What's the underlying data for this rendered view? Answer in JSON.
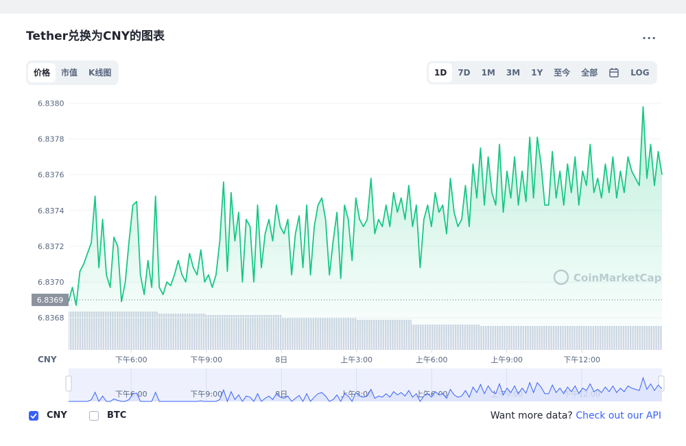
{
  "header": {
    "title": "Tether兑换为CNY的图表",
    "menu": "..."
  },
  "view_tabs": [
    {
      "label": "价格",
      "active": true
    },
    {
      "label": "市值",
      "active": false
    },
    {
      "label": "K线图",
      "active": false
    }
  ],
  "range_tabs": [
    {
      "label": "1D",
      "active": true
    },
    {
      "label": "7D",
      "active": false
    },
    {
      "label": "1M",
      "active": false
    },
    {
      "label": "3M",
      "active": false
    },
    {
      "label": "1Y",
      "active": false
    },
    {
      "label": "至今",
      "active": false
    },
    {
      "label": "全部",
      "active": false
    }
  ],
  "log_toggle": "LOG",
  "chart_data": {
    "type": "line",
    "ylim": [
      6.83662,
      6.83804
    ],
    "yticks": [
      {
        "value": 6.838,
        "label": "6.8380"
      },
      6.8378,
      6.8376,
      6.8374,
      6.8372,
      {
        "value": 6.837,
        "label": "6.8370"
      },
      6.8368
    ],
    "xlim": [
      15.5,
      39.2
    ],
    "xticks": [
      {
        "value": 18,
        "label": "下午6:00"
      },
      {
        "value": 21,
        "label": "下午9:00"
      },
      {
        "value": 24,
        "label": "8日"
      },
      {
        "value": 27,
        "label": "上午3:00"
      },
      {
        "value": 30,
        "label": "上午6:00"
      },
      {
        "value": 33,
        "label": "上午9:00"
      },
      {
        "value": 36,
        "label": "下午12:00"
      }
    ],
    "grid": true,
    "current_price": 6.8369,
    "watermark": "CoinMarketCap",
    "series": [
      {
        "name": "CNY",
        "color": "#16c784",
        "values": [
          6.83689,
          6.83697,
          6.83687,
          6.83706,
          6.8371,
          6.83716,
          6.83722,
          6.83748,
          6.83708,
          6.83735,
          6.83704,
          6.83697,
          6.83725,
          6.8372,
          6.83689,
          6.837,
          6.83723,
          6.83743,
          6.83745,
          6.83704,
          6.83693,
          6.83712,
          6.83697,
          6.83748,
          6.83697,
          6.83693,
          6.837,
          6.83698,
          6.83704,
          6.83712,
          6.83704,
          6.837,
          6.83716,
          6.83708,
          6.83704,
          6.83718,
          6.837,
          6.83704,
          6.83697,
          6.83704,
          6.83723,
          6.83756,
          6.83706,
          6.8375,
          6.83723,
          6.83739,
          6.837,
          6.83735,
          6.83731,
          6.837,
          6.83743,
          6.83708,
          6.83727,
          6.83735,
          6.83723,
          6.83743,
          6.83731,
          6.83727,
          6.83735,
          6.83704,
          6.83727,
          6.83737,
          6.83708,
          6.83743,
          6.83704,
          6.83731,
          6.83743,
          6.83747,
          6.83735,
          6.83704,
          6.83723,
          6.83739,
          6.83702,
          6.83743,
          6.83735,
          6.83712,
          6.83747,
          6.83735,
          6.83731,
          6.83735,
          6.83758,
          6.83727,
          6.83735,
          6.83731,
          6.83743,
          6.83731,
          6.8375,
          6.83739,
          6.83747,
          6.83735,
          6.83754,
          6.83731,
          6.83743,
          6.83708,
          6.83735,
          6.83743,
          6.83731,
          6.8375,
          6.83739,
          6.83743,
          6.83727,
          6.83758,
          6.83739,
          6.83731,
          6.83735,
          6.83754,
          6.83731,
          6.83766,
          6.83747,
          6.83775,
          6.83743,
          6.8377,
          6.8375,
          6.83743,
          6.83777,
          6.83739,
          6.83762,
          6.83747,
          6.8377,
          6.83743,
          6.83762,
          6.83745,
          6.83781,
          6.83747,
          6.83781,
          6.83766,
          6.83743,
          6.83743,
          6.83773,
          6.83747,
          6.83762,
          6.83743,
          6.83766,
          6.8375,
          6.8377,
          6.83743,
          6.83762,
          6.83754,
          6.83777,
          6.8375,
          6.83758,
          6.83747,
          6.83766,
          6.8375,
          6.8377,
          6.83747,
          6.83762,
          6.8375,
          6.8377,
          6.83762,
          6.83758,
          6.83754,
          6.83798,
          6.83758,
          6.83777,
          6.83754,
          6.83773,
          6.8376
        ]
      }
    ]
  },
  "currencies": [
    {
      "name": "CNY",
      "checked": true
    },
    {
      "name": "BTC",
      "checked": false
    }
  ],
  "footer": {
    "prompt": "Want more data?",
    "link": "Check out our API"
  }
}
